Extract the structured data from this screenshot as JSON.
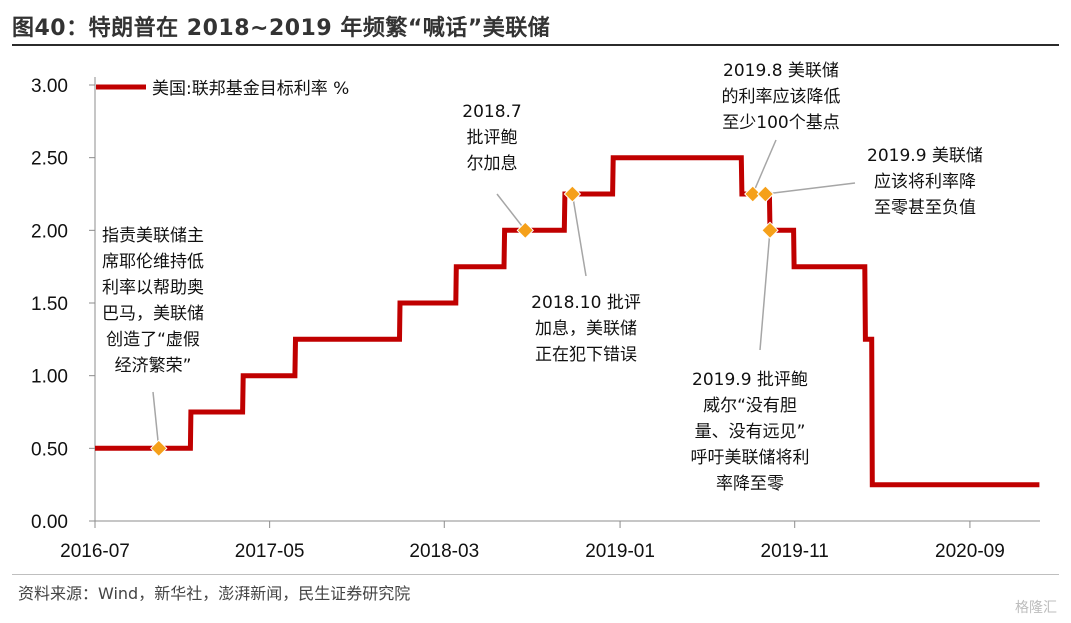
{
  "header": {
    "title": "图40：特朗普在 2018~2019 年频繁“喊话”美联储"
  },
  "footer": {
    "source": "资料来源：Wind，新华社，澎湃新闻，民生证券研究院",
    "watermark": "格隆汇"
  },
  "colors": {
    "line": "#c00000",
    "marker": "#f5a01a",
    "leader": "#a6a6a6"
  },
  "chart_data": {
    "type": "line",
    "title": "",
    "xlabel": "",
    "ylabel": "",
    "ylim": [
      0,
      3.0
    ],
    "yticks": [
      "0.00",
      "0.50",
      "1.00",
      "1.50",
      "2.00",
      "2.50",
      "3.00"
    ],
    "xticks": [
      "2016-07",
      "2017-05",
      "2018-03",
      "2019-01",
      "2019-11",
      "2020-09"
    ],
    "xrange": [
      "2016-07",
      "2021-01"
    ],
    "legend": {
      "label": "美国:联邦基金目标利率  %",
      "position": "top-left"
    },
    "series": [
      {
        "name": "美国:联邦基金目标利率  %",
        "points": [
          [
            "2016-07-01",
            0.5
          ],
          [
            "2016-12-14",
            0.5
          ],
          [
            "2016-12-15",
            0.75
          ],
          [
            "2017-03-15",
            0.75
          ],
          [
            "2017-03-16",
            1.0
          ],
          [
            "2017-06-14",
            1.0
          ],
          [
            "2017-06-15",
            1.25
          ],
          [
            "2017-12-13",
            1.25
          ],
          [
            "2017-12-14",
            1.5
          ],
          [
            "2018-03-21",
            1.5
          ],
          [
            "2018-03-22",
            1.75
          ],
          [
            "2018-06-13",
            1.75
          ],
          [
            "2018-06-14",
            2.0
          ],
          [
            "2018-09-26",
            2.0
          ],
          [
            "2018-09-27",
            2.25
          ],
          [
            "2018-12-19",
            2.25
          ],
          [
            "2018-12-20",
            2.5
          ],
          [
            "2019-07-31",
            2.5
          ],
          [
            "2019-08-01",
            2.25
          ],
          [
            "2019-09-18",
            2.25
          ],
          [
            "2019-09-19",
            2.0
          ],
          [
            "2019-10-30",
            2.0
          ],
          [
            "2019-10-31",
            1.75
          ],
          [
            "2020-03-02",
            1.75
          ],
          [
            "2020-03-03",
            1.25
          ],
          [
            "2020-03-14",
            1.25
          ],
          [
            "2020-03-15",
            0.25
          ],
          [
            "2020-12-31",
            0.25
          ]
        ]
      }
    ],
    "markers": [
      {
        "date": "2016-10-20",
        "value": 0.5,
        "text": "指责美联储主\n席耶伦维持低\n利率以帮助奥\n巴马，美联储\n创造了“虚假\n经济繁荣”"
      },
      {
        "date": "2018-07-20",
        "value": 2.0,
        "text": "2018.7\n批评鲍\n尔加息"
      },
      {
        "date": "2018-10-10",
        "value": 2.25,
        "text": "2018.10 批评\n加息，美联储\n正在犯下错误"
      },
      {
        "date": "2019-08-20",
        "value": 2.25,
        "text": "2019.8 美联储\n的利率应该降低\n至少100个基点"
      },
      {
        "date": "2019-09-11",
        "value": 2.25,
        "text": "2019.9 美联储\n应该将利率降\n至零甚至负值"
      },
      {
        "date": "2019-09-19",
        "value": 2.0,
        "text": "2019.9 批评鲍\n威尔“没有胆\n量、没有远见”\n呼吁美联储将利\n率降至零"
      }
    ]
  }
}
